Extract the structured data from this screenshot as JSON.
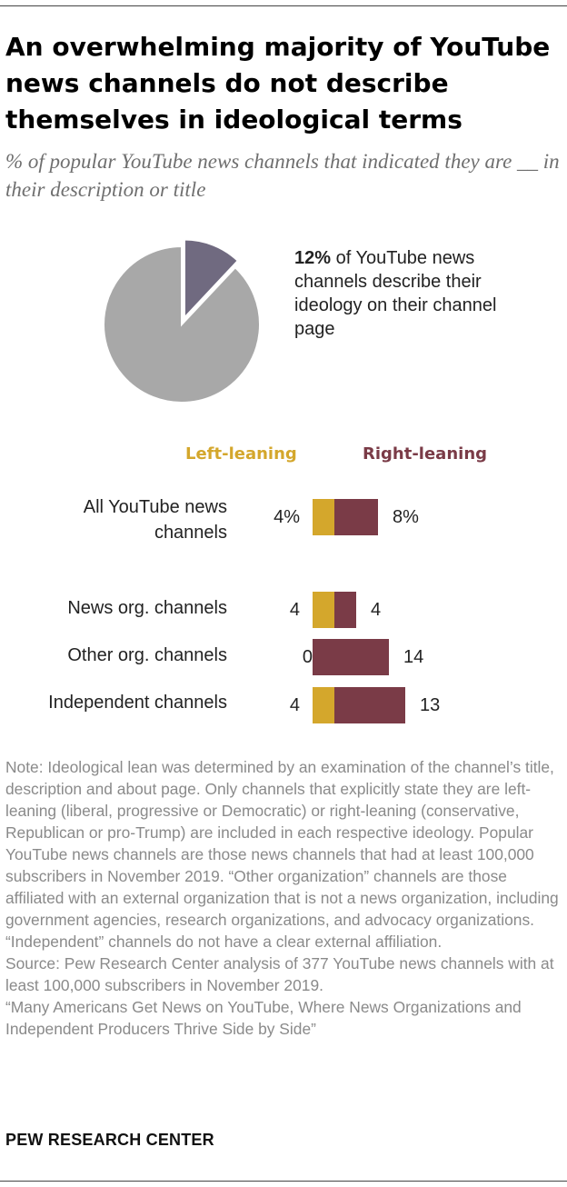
{
  "title": "An overwhelming majority of YouTube news channels do not describe themselves in ideological terms",
  "subtitle": "% of popular YouTube news channels that indicated they are __ in their description or title",
  "pie": {
    "callout_value": "12%",
    "callout_text": " of YouTube news channels describe their ideology on their channel page"
  },
  "colors": {
    "left": "#d4a72c",
    "right": "#7a3b47",
    "pie_main": "#a8a8a8",
    "pie_slice": "#706a80"
  },
  "chart_data": [
    {
      "type": "pie",
      "slices": [
        {
          "label": "describe their ideology",
          "value": 12
        },
        {
          "label": "",
          "value": 88
        }
      ]
    },
    {
      "type": "bar",
      "stacked": true,
      "orientation": "horizontal",
      "categories": [
        "All YouTube news channels",
        "News org. channels",
        "Other org. channels",
        "Independent channels"
      ],
      "series": [
        {
          "name": "Left-leaning",
          "values": [
            4,
            4,
            0,
            4
          ],
          "labels": [
            "4%",
            "4",
            "0",
            "4"
          ]
        },
        {
          "name": "Right-leaning",
          "values": [
            8,
            4,
            14,
            13
          ],
          "labels": [
            "8%",
            "4",
            "14",
            "13"
          ]
        }
      ]
    }
  ],
  "legend": {
    "left": "Left-leaning",
    "right": "Right-leaning"
  },
  "note": "Note: Ideological lean was determined by an examination of the channel’s title, description and about page. Only channels that explicitly state they are left-leaning (liberal, progressive or Democratic) or right-leaning (conservative, Republican or pro-Trump) are included in each respective ideology. Popular YouTube news channels are those news channels that had at least 100,000 subscribers in November 2019. “Other organization” channels are those affiliated with an external organization that is not a news organization, including government agencies, research organizations, and advocacy organizations. “Independent” channels do not have a clear external affiliation.",
  "source": "Source: Pew Research Center analysis of 377 YouTube news channels with at least 100,000 subscribers in November 2019.",
  "report": "“Many Americans Get News on YouTube, Where News Organizations and Independent Producers Thrive Side by Side”",
  "brand": "PEW RESEARCH CENTER"
}
